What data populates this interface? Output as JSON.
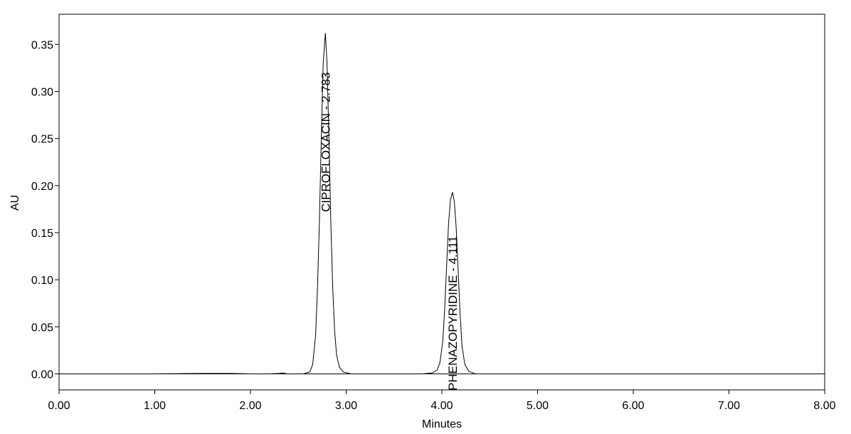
{
  "chart_data": {
    "type": "line",
    "title": "",
    "xlabel": "Minutes",
    "ylabel": "AU",
    "xlim": [
      0,
      8
    ],
    "ylim": [
      -0.017,
      0.382
    ],
    "x_ticks": [
      "0.00",
      "1.00",
      "2.00",
      "3.00",
      "4.00",
      "5.00",
      "6.00",
      "7.00",
      "8.00"
    ],
    "y_ticks": [
      "0.00",
      "0.05",
      "0.10",
      "0.15",
      "0.20",
      "0.25",
      "0.30",
      "0.35"
    ],
    "grid": false,
    "series": [
      {
        "x": [
          0.0,
          0.5,
          1.0,
          1.5,
          1.8,
          2.0,
          2.2,
          2.3,
          2.34,
          2.38,
          2.45,
          2.55,
          2.62,
          2.65,
          2.68,
          2.7,
          2.72,
          2.74,
          2.76,
          2.783,
          2.8,
          2.82,
          2.84,
          2.86,
          2.88,
          2.9,
          2.93,
          2.97,
          3.05,
          3.2,
          3.5,
          3.8,
          3.9,
          3.95,
          3.98,
          4.01,
          4.03,
          4.05,
          4.07,
          4.09,
          4.111,
          4.13,
          4.15,
          4.17,
          4.19,
          4.21,
          4.24,
          4.28,
          4.35,
          4.5,
          5.0,
          6.0,
          7.0,
          8.0
        ],
        "y": [
          0.0,
          0.0,
          0.0,
          0.0005,
          0.0005,
          0.0,
          0.0,
          0.0005,
          0.001,
          0.0,
          0.0,
          0.0,
          0.002,
          0.01,
          0.04,
          0.09,
          0.16,
          0.25,
          0.33,
          0.362,
          0.33,
          0.25,
          0.16,
          0.09,
          0.045,
          0.02,
          0.007,
          0.002,
          0.0,
          0.0,
          0.0,
          0.0,
          0.001,
          0.004,
          0.012,
          0.035,
          0.07,
          0.115,
          0.16,
          0.185,
          0.193,
          0.183,
          0.155,
          0.11,
          0.065,
          0.03,
          0.01,
          0.003,
          0.0,
          0.0,
          0.0,
          0.0,
          0.0,
          0.0
        ],
        "color": "#000000"
      }
    ],
    "annotations": [
      {
        "text": "CIPROFLOXACIN - 2.783",
        "x": 2.783
      },
      {
        "text": "PHENAZOPYRIDINE - 4.111",
        "x": 4.111
      }
    ]
  }
}
